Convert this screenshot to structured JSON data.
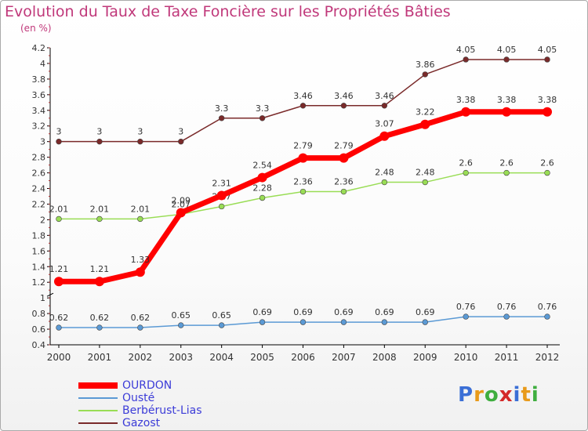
{
  "header": {
    "title": "Evolution du Taux de Taxe Foncière sur les Propriétés Bâties",
    "subtitle": "(en %)"
  },
  "chart_data": {
    "type": "line",
    "title": "Evolution du Taux de Taxe Foncière sur les Propriétés Bâties",
    "ylabel": "(en %)",
    "xlabel": "",
    "x": [
      "2000",
      "2001",
      "2002",
      "2003",
      "2004",
      "2005",
      "2006",
      "2007",
      "2008",
      "2009",
      "2010",
      "2011",
      "2012"
    ],
    "ylim": [
      0.4,
      4.2
    ],
    "yticks": [
      "0.4",
      "0.6",
      "0.8",
      "1",
      "1.2",
      "1.4",
      "1.6",
      "1.8",
      "2",
      "2.2",
      "2.4",
      "2.6",
      "2.8",
      "3",
      "3.2",
      "3.4",
      "3.6",
      "3.8",
      "4",
      "4.2"
    ],
    "grid": false,
    "series": [
      {
        "name": "OURDON",
        "color": "#ff0000",
        "values": [
          1.21,
          1.21,
          1.33,
          2.09,
          2.31,
          2.54,
          2.79,
          2.79,
          3.07,
          3.22,
          3.38,
          3.38,
          3.38
        ],
        "labels": [
          "1.21",
          "1.21",
          "1.33",
          "2.09",
          "2.31",
          "2.54",
          "2.79",
          "2.79",
          "3.07",
          "3.22",
          "3.38",
          "3.38",
          "3.38"
        ]
      },
      {
        "name": "Ousté",
        "color": "#5b9ad5",
        "values": [
          0.62,
          0.62,
          0.62,
          0.65,
          0.65,
          0.69,
          0.69,
          0.69,
          0.69,
          0.69,
          0.76,
          0.76,
          0.76
        ],
        "labels": [
          "0.62",
          "0.62",
          "0.62",
          "0.65",
          "0.65",
          "0.69",
          "0.69",
          "0.69",
          "0.69",
          "0.69",
          "0.76",
          "0.76",
          "0.76"
        ]
      },
      {
        "name": "Berbérust-Lias",
        "color": "#99dd55",
        "values": [
          2.01,
          2.01,
          2.01,
          2.07,
          2.17,
          2.28,
          2.36,
          2.36,
          2.48,
          2.48,
          2.6,
          2.6,
          2.6
        ],
        "labels": [
          "2.01",
          "2.01",
          "2.01",
          "2.07",
          "2.17",
          "2.28",
          "2.36",
          "2.36",
          "2.48",
          "2.48",
          "2.6",
          "2.6",
          "2.6"
        ]
      },
      {
        "name": "Gazost",
        "color": "#7a2a2a",
        "values": [
          3,
          3,
          3,
          3,
          3.3,
          3.3,
          3.46,
          3.46,
          3.46,
          3.86,
          4.05,
          4.05,
          4.05
        ],
        "labels": [
          "3",
          "3",
          "3",
          "3",
          "3.3",
          "3.3",
          "3.46",
          "3.46",
          "3.46",
          "3.86",
          "4.05",
          "4.05",
          "4.05"
        ]
      }
    ]
  },
  "logo": {
    "letters": [
      "P",
      "r",
      "o",
      "x",
      "i",
      "t",
      "i"
    ],
    "colors": [
      "#3b6fd6",
      "#e89a1a",
      "#3fae3f",
      "#d42a2a",
      "#3b6fd6",
      "#e89a1a",
      "#3fae3f"
    ]
  }
}
